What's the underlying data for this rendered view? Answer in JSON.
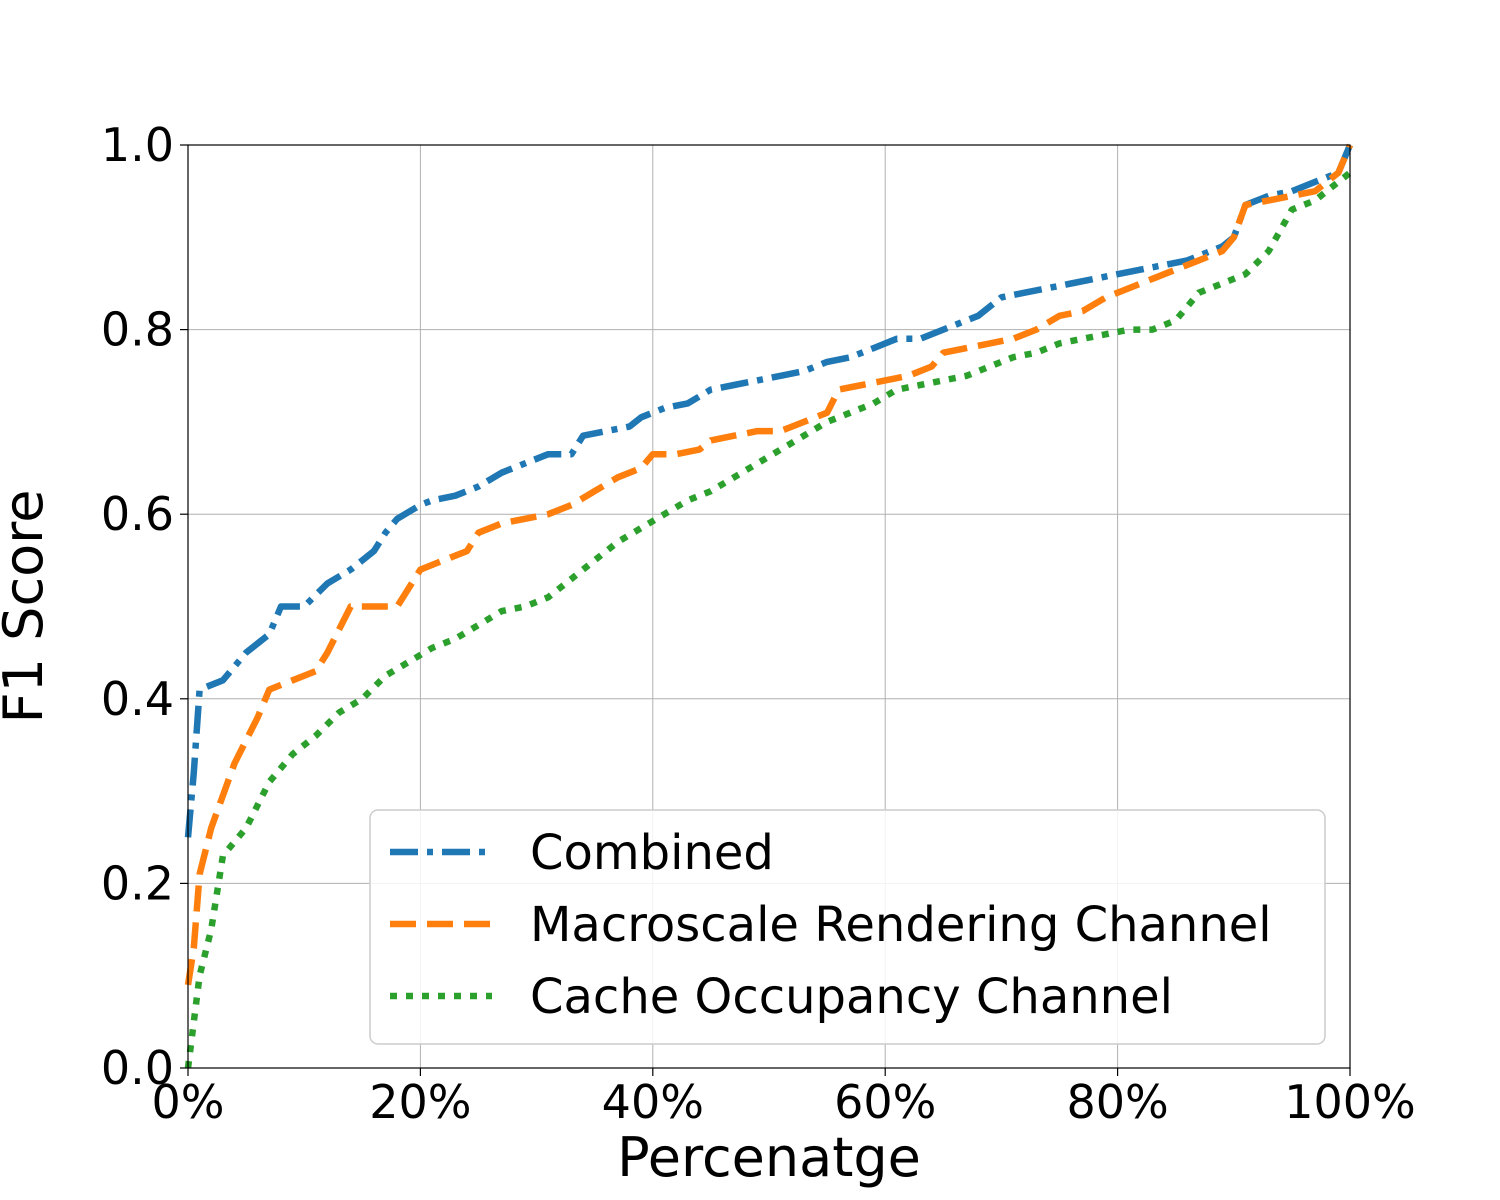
{
  "chart_data": {
    "type": "line",
    "xlabel": "Percenatge",
    "ylabel": "F1 Score",
    "xlim": [
      0,
      100
    ],
    "ylim": [
      0.0,
      1.0
    ],
    "x_ticks": [
      "0%",
      "20%",
      "40%",
      "60%",
      "80%",
      "100%"
    ],
    "y_ticks": [
      "0.0",
      "0.2",
      "0.4",
      "0.6",
      "0.8",
      "1.0"
    ],
    "grid": true,
    "legend_position": "lower-right",
    "series": [
      {
        "name": "Combined",
        "color": "#1f77b4",
        "style": "dashdot",
        "x": [
          0,
          0.5,
          1,
          3,
          5,
          7,
          8,
          10,
          12,
          14,
          16,
          17,
          18,
          20,
          21,
          23,
          25,
          27,
          29,
          31,
          33,
          34,
          36,
          38,
          39,
          41,
          43,
          45,
          47,
          49,
          51,
          53,
          55,
          57,
          59,
          61,
          63,
          65,
          67,
          68,
          70,
          72,
          74,
          76,
          78,
          80,
          82,
          84,
          86,
          88,
          89,
          90,
          91,
          93,
          95,
          97,
          99,
          100
        ],
        "y": [
          0.25,
          0.32,
          0.41,
          0.42,
          0.45,
          0.47,
          0.5,
          0.5,
          0.525,
          0.54,
          0.56,
          0.58,
          0.595,
          0.61,
          0.615,
          0.62,
          0.63,
          0.645,
          0.655,
          0.665,
          0.665,
          0.685,
          0.69,
          0.695,
          0.705,
          0.715,
          0.72,
          0.735,
          0.74,
          0.745,
          0.75,
          0.755,
          0.765,
          0.77,
          0.78,
          0.79,
          0.79,
          0.8,
          0.81,
          0.815,
          0.835,
          0.84,
          0.845,
          0.85,
          0.855,
          0.86,
          0.865,
          0.87,
          0.875,
          0.885,
          0.89,
          0.9,
          0.935,
          0.945,
          0.95,
          0.96,
          0.97,
          1.0
        ]
      },
      {
        "name": "Macroscale Rendering Channel",
        "color": "#ff7f0e",
        "style": "dashed",
        "x": [
          0,
          0.5,
          1,
          2,
          4,
          6,
          7,
          9,
          11,
          12,
          14,
          16,
          18,
          20,
          22,
          24,
          25,
          27,
          29,
          31,
          33,
          35,
          37,
          39,
          40,
          42,
          44,
          45,
          47,
          49,
          51,
          53,
          55,
          56,
          58,
          60,
          62,
          64,
          65,
          67,
          69,
          71,
          73,
          75,
          77,
          79,
          81,
          83,
          85,
          87,
          89,
          90,
          91,
          93,
          95,
          97,
          99,
          100
        ],
        "y": [
          0.09,
          0.13,
          0.21,
          0.26,
          0.33,
          0.38,
          0.41,
          0.42,
          0.43,
          0.45,
          0.5,
          0.5,
          0.5,
          0.54,
          0.55,
          0.56,
          0.58,
          0.59,
          0.595,
          0.6,
          0.61,
          0.625,
          0.64,
          0.65,
          0.665,
          0.665,
          0.67,
          0.68,
          0.685,
          0.69,
          0.69,
          0.7,
          0.71,
          0.735,
          0.74,
          0.745,
          0.75,
          0.76,
          0.775,
          0.78,
          0.785,
          0.79,
          0.8,
          0.815,
          0.82,
          0.835,
          0.845,
          0.855,
          0.865,
          0.875,
          0.885,
          0.9,
          0.935,
          0.94,
          0.945,
          0.95,
          0.97,
          1.0
        ]
      },
      {
        "name": "Cache Occupancy Channel",
        "color": "#2ca02c",
        "style": "dotted",
        "x": [
          0,
          0.5,
          1,
          2,
          3,
          5,
          7,
          9,
          11,
          13,
          15,
          17,
          19,
          21,
          23,
          25,
          27,
          29,
          31,
          33,
          35,
          37,
          39,
          41,
          43,
          45,
          47,
          49,
          51,
          53,
          55,
          57,
          59,
          61,
          63,
          65,
          67,
          69,
          71,
          73,
          75,
          77,
          79,
          81,
          83,
          85,
          87,
          89,
          91,
          93,
          95,
          97,
          99,
          100
        ],
        "y": [
          0.0,
          0.05,
          0.1,
          0.15,
          0.23,
          0.26,
          0.31,
          0.34,
          0.36,
          0.385,
          0.4,
          0.425,
          0.44,
          0.455,
          0.465,
          0.48,
          0.495,
          0.5,
          0.51,
          0.53,
          0.55,
          0.57,
          0.585,
          0.6,
          0.615,
          0.625,
          0.64,
          0.655,
          0.67,
          0.685,
          0.7,
          0.71,
          0.72,
          0.735,
          0.74,
          0.745,
          0.75,
          0.76,
          0.77,
          0.775,
          0.785,
          0.79,
          0.795,
          0.8,
          0.8,
          0.81,
          0.84,
          0.85,
          0.86,
          0.885,
          0.93,
          0.94,
          0.96,
          0.97
        ]
      }
    ]
  }
}
